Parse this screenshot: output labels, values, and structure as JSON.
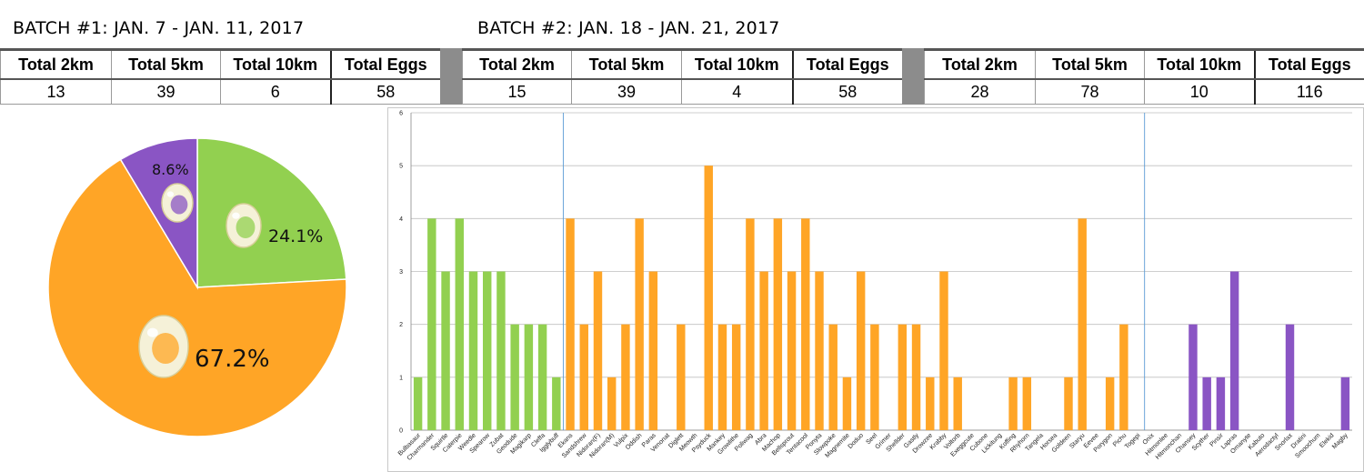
{
  "batch1": {
    "title": "BATCH #1: JAN. 7 - JAN. 11, 2017"
  },
  "batch2": {
    "title": "BATCH #2: JAN. 18 - JAN. 21, 2017"
  },
  "headers": [
    "Total 2km",
    "Total 5km",
    "Total 10km",
    "Total Eggs"
  ],
  "tables": [
    {
      "name": "batch1",
      "values": [
        "13",
        "39",
        "6",
        "58"
      ]
    },
    {
      "name": "batch2",
      "values": [
        "15",
        "39",
        "4",
        "58"
      ]
    },
    {
      "name": "combined",
      "values": [
        "28",
        "78",
        "10",
        "116"
      ]
    }
  ],
  "colors": {
    "green": "#92d050",
    "orange": "#ffa526",
    "purple": "#8a55c4",
    "divider": "#8c8c8c",
    "grid": "#bfbfbf",
    "separator": "#5b9bd5"
  },
  "chart_data": [
    {
      "type": "pie",
      "slices": [
        {
          "label": "24.1%",
          "value": 24.1,
          "color": "#92d050",
          "icon": "green-egg-icon"
        },
        {
          "label": "67.2%",
          "value": 67.2,
          "color": "#ffa526",
          "icon": "orange-egg-icon"
        },
        {
          "label": "8.6%",
          "value": 8.6,
          "color": "#8a55c4",
          "icon": "purple-egg-icon"
        }
      ]
    },
    {
      "type": "bar",
      "ylim": [
        0,
        6
      ],
      "yticks": [
        "0",
        "1",
        "2",
        "3",
        "4",
        "5",
        "6"
      ],
      "grid": true,
      "categories": [
        "Bulbasaur",
        "Charmander",
        "Squirtle",
        "Caterpie",
        "Weedle",
        "Spearow",
        "Zubat",
        "Geodude",
        "Magikarp",
        "Cleffa",
        "Igglybuff",
        "Ekans",
        "Sandshrew",
        "Nidoran(F)",
        "Nidoran(M)",
        "Vulpix",
        "Oddish",
        "Paras",
        "Venonat",
        "Diglett",
        "Meowth",
        "Psyduck",
        "Mankey",
        "Growlithe",
        "Poliwag",
        "Abra",
        "Machop",
        "Bellsprout",
        "Tentacool",
        "Ponyta",
        "Slowpoke",
        "Magnemite",
        "Doduo",
        "Seel",
        "Grimer",
        "Shellder",
        "Gastly",
        "Drowzee",
        "Krabby",
        "Voltorb",
        "Exeggcute",
        "Cubone",
        "Lickitung",
        "Koffing",
        "Rhyhorn",
        "Tangela",
        "Horsea",
        "Goldeen",
        "Staryu",
        "Eevee",
        "Porygon",
        "Pichu",
        "Togepi",
        "Onix",
        "Hitmonlee",
        "Hitmonchan",
        "Chansey",
        "Scyther",
        "Pinsir",
        "Lapras",
        "Omanyte",
        "Kabuto",
        "Aerodactyl",
        "Snorlax",
        "Dratini",
        "Smoochum",
        "Elekid",
        "Magby"
      ],
      "values": [
        1,
        4,
        3,
        4,
        3,
        3,
        3,
        2,
        2,
        2,
        1,
        4,
        2,
        3,
        1,
        2,
        4,
        3,
        0,
        2,
        0,
        5,
        2,
        2,
        4,
        3,
        4,
        3,
        4,
        3,
        2,
        1,
        3,
        2,
        0,
        2,
        2,
        1,
        3,
        1,
        0,
        0,
        0,
        1,
        1,
        0,
        0,
        1,
        4,
        0,
        1,
        2,
        0,
        0,
        0,
        0,
        2,
        1,
        1,
        3,
        0,
        0,
        0,
        2,
        0,
        0,
        0,
        1
      ],
      "groups": [
        {
          "name": "2km",
          "start": 0,
          "end": 10,
          "color": "#92d050"
        },
        {
          "name": "5km",
          "start": 11,
          "end": 52,
          "color": "#ffa526"
        },
        {
          "name": "10km",
          "start": 53,
          "end": 67,
          "color": "#8a55c4"
        }
      ]
    }
  ]
}
